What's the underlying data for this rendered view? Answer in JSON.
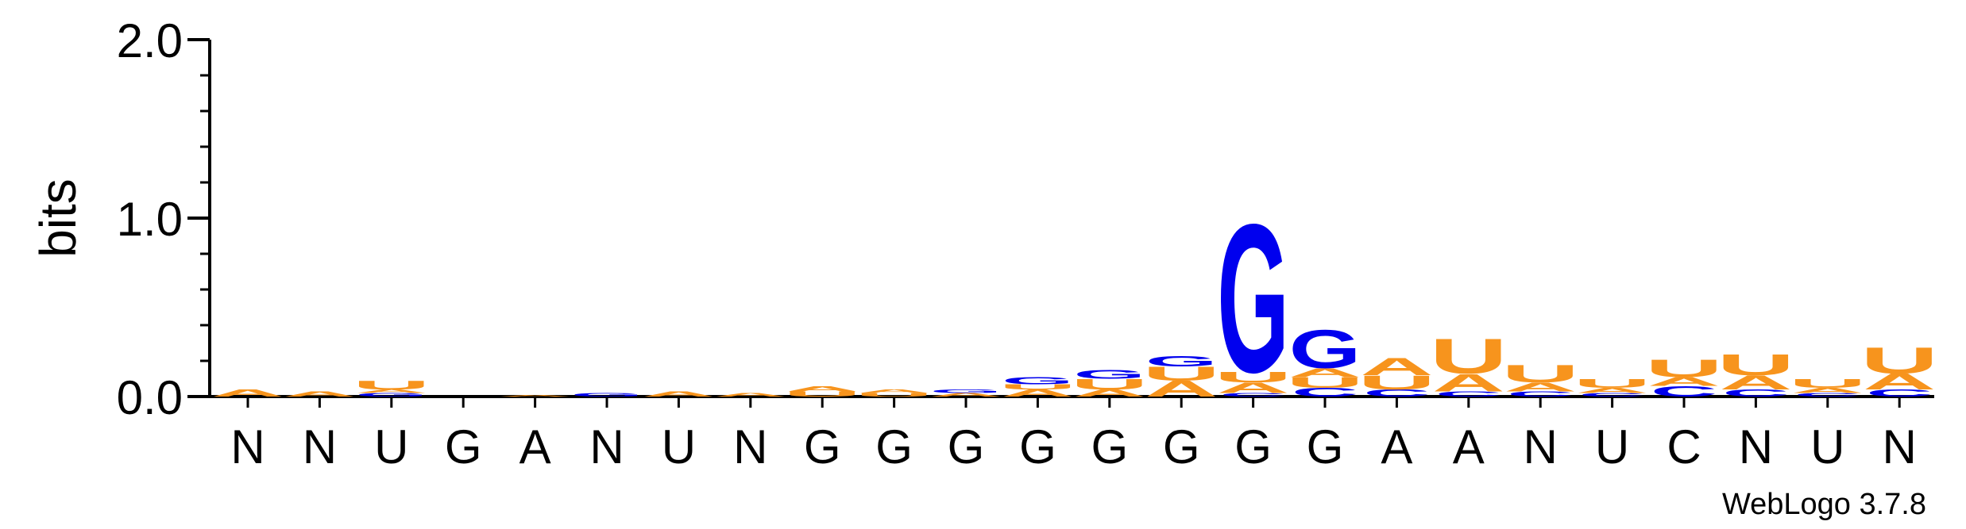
{
  "chart_data": {
    "type": "sequence-logo",
    "ylabel": "bits",
    "ylim": [
      0,
      2.0
    ],
    "yticks": [
      "0.0",
      "1.0",
      "2.0"
    ],
    "xlabels": [
      "N",
      "N",
      "U",
      "G",
      "A",
      "N",
      "U",
      "N",
      "G",
      "G",
      "G",
      "G",
      "G",
      "G",
      "G",
      "G",
      "A",
      "A",
      "N",
      "U",
      "C",
      "N",
      "U",
      "N"
    ],
    "colors": {
      "A": "#f7941d",
      "U": "#f7941d",
      "G": "#0000ee",
      "C": "#0000ee"
    },
    "positions": [
      [
        [
          "A",
          0.04
        ]
      ],
      [
        [
          "A",
          0.03
        ]
      ],
      [
        [
          "G",
          0.02
        ],
        [
          "A",
          0.02
        ],
        [
          "U",
          0.05
        ]
      ],
      [],
      [
        [
          "A",
          0.01
        ]
      ],
      [
        [
          "G",
          0.02
        ]
      ],
      [
        [
          "A",
          0.03
        ]
      ],
      [
        [
          "A",
          0.02
        ]
      ],
      [
        [
          "U",
          0.03
        ],
        [
          "A",
          0.03
        ]
      ],
      [
        [
          "U",
          0.02
        ],
        [
          "A",
          0.02
        ]
      ],
      [
        [
          "A",
          0.02
        ],
        [
          "G",
          0.02
        ]
      ],
      [
        [
          "A",
          0.04
        ],
        [
          "U",
          0.03
        ],
        [
          "G",
          0.04
        ]
      ],
      [
        [
          "A",
          0.04
        ],
        [
          "U",
          0.06
        ],
        [
          "G",
          0.05
        ]
      ],
      [
        [
          "A",
          0.09
        ],
        [
          "U",
          0.08
        ],
        [
          "G",
          0.06
        ]
      ],
      [
        [
          "C",
          0.02
        ],
        [
          "A",
          0.06
        ],
        [
          "U",
          0.06
        ],
        [
          "G",
          0.85
        ]
      ],
      [
        [
          "C",
          0.05
        ],
        [
          "U",
          0.06
        ],
        [
          "A",
          0.05
        ],
        [
          "G",
          0.22
        ]
      ],
      [
        [
          "C",
          0.04
        ],
        [
          "U",
          0.08
        ],
        [
          "A",
          0.1
        ]
      ],
      [
        [
          "C",
          0.03
        ],
        [
          "A",
          0.1
        ],
        [
          "U",
          0.2
        ]
      ],
      [
        [
          "C",
          0.03
        ],
        [
          "A",
          0.05
        ],
        [
          "U",
          0.1
        ]
      ],
      [
        [
          "C",
          0.02
        ],
        [
          "A",
          0.03
        ],
        [
          "U",
          0.05
        ]
      ],
      [
        [
          "C",
          0.06
        ],
        [
          "A",
          0.05
        ],
        [
          "U",
          0.1
        ]
      ],
      [
        [
          "C",
          0.04
        ],
        [
          "A",
          0.08
        ],
        [
          "U",
          0.12
        ]
      ],
      [
        [
          "C",
          0.02
        ],
        [
          "A",
          0.03
        ],
        [
          "U",
          0.05
        ]
      ],
      [
        [
          "C",
          0.04
        ],
        [
          "A",
          0.09
        ],
        [
          "U",
          0.15
        ]
      ]
    ],
    "credit": "WebLogo 3.7.8"
  }
}
